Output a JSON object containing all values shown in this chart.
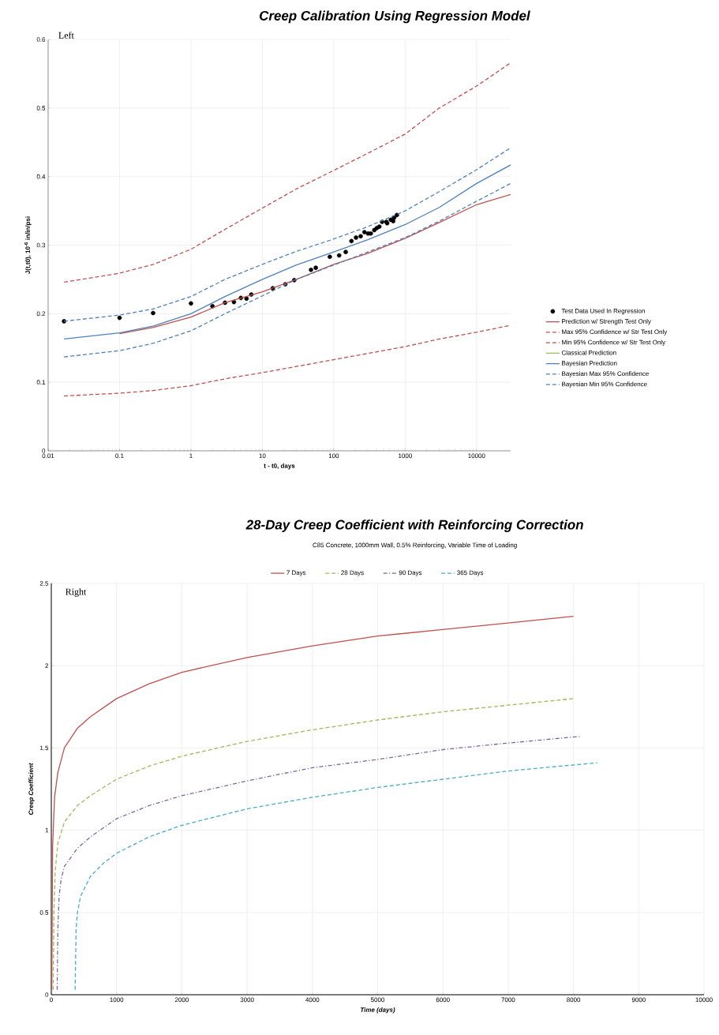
{
  "chart_data": [
    {
      "type": "line",
      "title": "Creep Calibration Using Regression Model",
      "xlabel": "t - t0, days",
      "ylabel": "J(t,t0),  10$^{-6}$ in/in/psi",
      "annotations": [
        "Left"
      ],
      "log": "x",
      "grid": true,
      "legend": "right",
      "xlim": [
        0.01,
        30000
      ],
      "ylim": [
        0,
        0.6
      ],
      "xticks": [
        0.01,
        0.1,
        1,
        10,
        100,
        1000,
        10000
      ],
      "yticks": [
        0,
        0.1,
        0.2,
        0.3,
        0.4,
        0.5,
        0.6
      ],
      "x": [
        0.0167,
        0.1,
        0.3,
        1,
        3,
        10,
        30,
        100,
        300,
        1000,
        3000,
        10000,
        30000
      ],
      "series": [
        {
          "name": "Test Data Used In Regression",
          "type": "scatter",
          "marker": "circle",
          "color": "#000000",
          "x": [
            0.0167,
            0.1,
            0.295,
            1,
            2,
            3,
            4,
            5,
            6,
            7,
            14,
            21,
            28,
            48,
            56,
            88,
            119,
            147,
            177,
            205,
            238,
            269,
            302,
            330,
            370,
            401,
            435,
            475,
            545,
            560,
            631,
            680,
            700,
            766
          ],
          "values": [
            0.189,
            0.194,
            0.201,
            0.215,
            0.211,
            0.216,
            0.217,
            0.223,
            0.222,
            0.228,
            0.237,
            0.243,
            0.249,
            0.264,
            0.267,
            0.283,
            0.285,
            0.29,
            0.306,
            0.311,
            0.313,
            0.319,
            0.317,
            0.317,
            0.322,
            0.325,
            0.327,
            0.334,
            0.334,
            0.332,
            0.337,
            0.335,
            0.34,
            0.344
          ]
        },
        {
          "name": "Prediction w/ Strength Test Only",
          "color": "#c0504d",
          "line_style": "solid",
          "values": [
            null,
            0.171,
            0.18,
            0.195,
            0.216,
            0.232,
            0.25,
            0.272,
            0.288,
            0.31,
            0.333,
            0.359,
            0.374
          ]
        },
        {
          "name": "Max 95% Confidence w/ Str Test Only",
          "color": "#c0504d",
          "line_style": "dashed",
          "values": [
            0.246,
            0.259,
            0.272,
            0.294,
            0.323,
            0.354,
            0.382,
            0.409,
            0.434,
            0.462,
            0.5,
            0.532,
            0.566
          ]
        },
        {
          "name": "Min 95% Confidence w/ Str Test Only",
          "color": "#c0504d",
          "line_style": "dashed",
          "values": [
            0.08,
            0.084,
            0.088,
            0.095,
            0.105,
            0.114,
            0.123,
            0.133,
            0.142,
            0.152,
            0.163,
            0.173,
            0.183
          ]
        },
        {
          "name": "Classical Prediction",
          "color": "#9bbb59",
          "line_style": "solid",
          "values": [
            null,
            null,
            null,
            null,
            null,
            null,
            null,
            null,
            null,
            null,
            null,
            null,
            null
          ]
        },
        {
          "name": "Bayesian Prediction",
          "color": "#4f81bd",
          "line_style": "solid",
          "values": [
            0.163,
            0.172,
            0.182,
            0.2,
            0.225,
            0.25,
            0.271,
            0.29,
            0.308,
            0.33,
            0.355,
            0.39,
            0.417
          ]
        },
        {
          "name": "Bayesian Max 95% Confidence",
          "color": "#4f81bd",
          "line_style": "dashed",
          "values": [
            0.189,
            0.198,
            0.207,
            0.225,
            0.25,
            0.272,
            0.291,
            0.309,
            0.327,
            0.35,
            0.378,
            0.41,
            0.442
          ]
        },
        {
          "name": "Bayesian Min 95% Confidence",
          "color": "#4f81bd",
          "line_style": "dashed",
          "values": [
            0.137,
            0.146,
            0.157,
            0.175,
            0.2,
            0.226,
            0.25,
            0.271,
            0.29,
            0.311,
            0.335,
            0.364,
            0.39
          ]
        }
      ]
    },
    {
      "type": "line",
      "title": "28-Day Creep Coefficient with Reinforcing Correction",
      "subtitle": "C85 Concrete, 1000mm Wall, 0.5% Reinforcing, Variable Time of Loading",
      "xlabel": "Time (days)",
      "ylabel": "Creep Coefficient",
      "annotations": [
        "Right"
      ],
      "grid": true,
      "legend": "top",
      "xlim": [
        0,
        10000
      ],
      "ylim": [
        0,
        2.5
      ],
      "xticks": [
        0,
        1000,
        2000,
        3000,
        4000,
        5000,
        6000,
        7000,
        8000,
        9000,
        10000
      ],
      "yticks": [
        0,
        0.5,
        1,
        1.5,
        2,
        2.5
      ],
      "series": [
        {
          "name": "7 Days",
          "color": "#c0504d",
          "line_style": "solid",
          "x": [
            7,
            20,
            50,
            100,
            200,
            400,
            600,
            1000,
            1500,
            2000,
            3000,
            4000,
            5000,
            6000,
            7000,
            8000
          ],
          "values": [
            0.03,
            0.9,
            1.2,
            1.35,
            1.5,
            1.62,
            1.69,
            1.8,
            1.89,
            1.96,
            2.05,
            2.12,
            2.18,
            2.22,
            2.26,
            2.3
          ]
        },
        {
          "name": "28 Days",
          "color": "#9bbb59",
          "line_style": "dashed",
          "x": [
            28,
            40,
            60,
            100,
            200,
            400,
            600,
            1000,
            1500,
            2000,
            3000,
            4000,
            5000,
            6000,
            7000,
            8000
          ],
          "values": [
            0.03,
            0.5,
            0.75,
            0.92,
            1.05,
            1.15,
            1.21,
            1.31,
            1.39,
            1.45,
            1.54,
            1.61,
            1.67,
            1.72,
            1.76,
            1.8
          ]
        },
        {
          "name": "90 Days",
          "color": "#8064a2",
          "line_style": "dashdot",
          "x": [
            90,
            100,
            120,
            150,
            200,
            400,
            600,
            1000,
            1500,
            2000,
            3000,
            4000,
            5000,
            6000,
            7000,
            8100
          ],
          "values": [
            0.03,
            0.4,
            0.6,
            0.7,
            0.78,
            0.89,
            0.96,
            1.07,
            1.15,
            1.21,
            1.3,
            1.38,
            1.43,
            1.49,
            1.53,
            1.57
          ]
        },
        {
          "name": "365 Days",
          "color": "#4bacc6",
          "line_style": "dashed",
          "x": [
            365,
            380,
            400,
            450,
            600,
            800,
            1000,
            1500,
            2000,
            3000,
            4000,
            5000,
            6000,
            7000,
            8365
          ],
          "values": [
            0.03,
            0.4,
            0.5,
            0.6,
            0.72,
            0.8,
            0.86,
            0.96,
            1.03,
            1.13,
            1.2,
            1.26,
            1.31,
            1.36,
            1.41
          ]
        }
      ]
    }
  ]
}
